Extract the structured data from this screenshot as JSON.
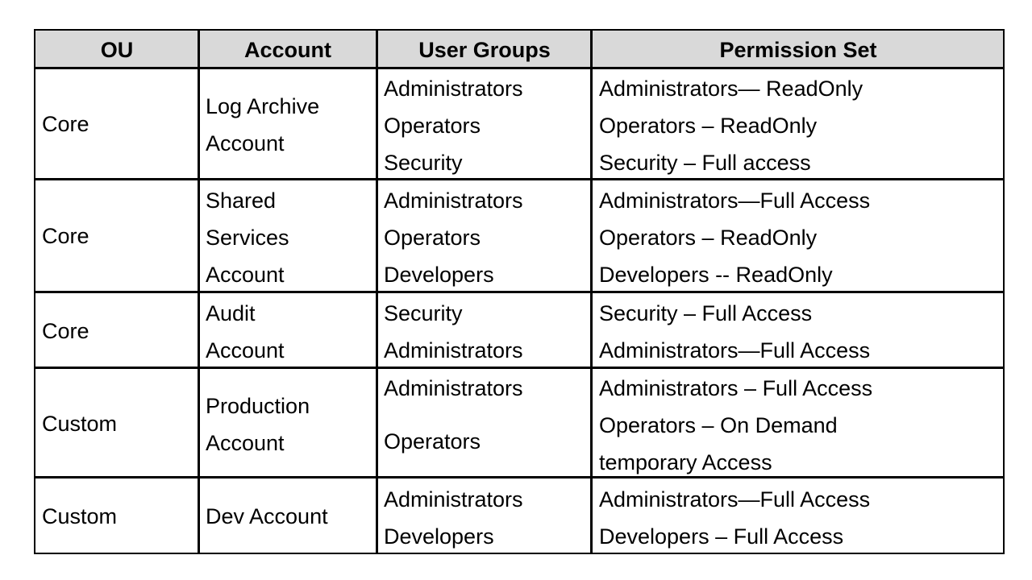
{
  "headers": [
    "OU",
    "Account",
    "User Groups",
    "Permission Set"
  ],
  "rows": [
    {
      "ou": "Core",
      "account": [
        "Log Archive",
        "Account"
      ],
      "groups": [
        "Administrators",
        "Operators",
        "Security"
      ],
      "permissions": [
        "Administrators— ReadOnly",
        "Operators – ReadOnly",
        "Security – Full access"
      ]
    },
    {
      "ou": "Core",
      "account": [
        "Shared",
        "Services",
        "Account"
      ],
      "groups": [
        "Administrators",
        "Operators",
        "Developers"
      ],
      "permissions": [
        "Administrators—Full Access",
        "Operators – ReadOnly",
        "Developers -- ReadOnly"
      ]
    },
    {
      "ou": "Core",
      "account": [
        "Audit",
        "Account"
      ],
      "groups": [
        "Security",
        "Administrators"
      ],
      "permissions": [
        "Security – Full Access",
        "Administrators—Full Access"
      ]
    },
    {
      "ou": "Custom",
      "account": [
        "Production",
        "Account"
      ],
      "groups": [
        "Administrators",
        "Operators"
      ],
      "permissions": [
        "Administrators – Full Access",
        "Operators – On Demand",
        "temporary Access"
      ]
    },
    {
      "ou": "Custom",
      "account": [
        "Dev Account"
      ],
      "groups": [
        "Administrators",
        "Developers"
      ],
      "permissions": [
        "Administrators—Full Access",
        "Developers – Full Access"
      ]
    }
  ],
  "colors": {
    "header_background": "#d9d9d9",
    "border": "#000000"
  }
}
